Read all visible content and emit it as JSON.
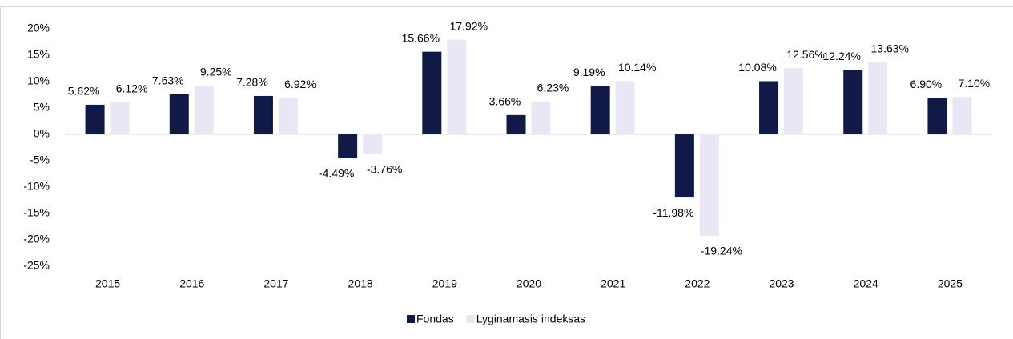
{
  "chart_data": {
    "type": "bar",
    "categories": [
      "2015",
      "2016",
      "2017",
      "2018",
      "2019",
      "2020",
      "2021",
      "2022",
      "2023",
      "2024",
      "2025"
    ],
    "series": [
      {
        "name": "Fondas",
        "color": "#111a47",
        "values": [
          5.62,
          7.63,
          7.28,
          -4.49,
          15.66,
          3.66,
          9.19,
          -11.98,
          10.08,
          12.24,
          6.9
        ],
        "value_labels": [
          "5.62%",
          "7.63%",
          "7.28%",
          "-4.49%",
          "15.66%",
          "3.66%",
          "9.19%",
          "-11.98%",
          "10.08%",
          "12.24%",
          "6.90%"
        ]
      },
      {
        "name": "Lyginamasis indeksas",
        "color": "#e9e7f5",
        "values": [
          6.12,
          9.25,
          6.92,
          -3.76,
          17.92,
          6.23,
          10.14,
          -19.24,
          12.56,
          13.63,
          7.1
        ],
        "value_labels": [
          "6.12%",
          "9.25%",
          "6.92%",
          "-3.76%",
          "17.92%",
          "6.23%",
          "10.14%",
          "-19.24%",
          "12.56%",
          "13.63%",
          "7.10%"
        ]
      }
    ],
    "ylim": [
      -25,
      20
    ],
    "yticks": [
      {
        "value": -25,
        "label": "-25%"
      },
      {
        "value": -20,
        "label": "-20%"
      },
      {
        "value": -15,
        "label": "-15%"
      },
      {
        "value": -10,
        "label": "-10%"
      },
      {
        "value": -5,
        "label": "-5%"
      },
      {
        "value": 0,
        "label": "0%"
      },
      {
        "value": 5,
        "label": "5%"
      },
      {
        "value": 10,
        "label": "10%"
      },
      {
        "value": 15,
        "label": "15%"
      },
      {
        "value": 20,
        "label": "20%"
      }
    ],
    "legend": "bottom"
  }
}
